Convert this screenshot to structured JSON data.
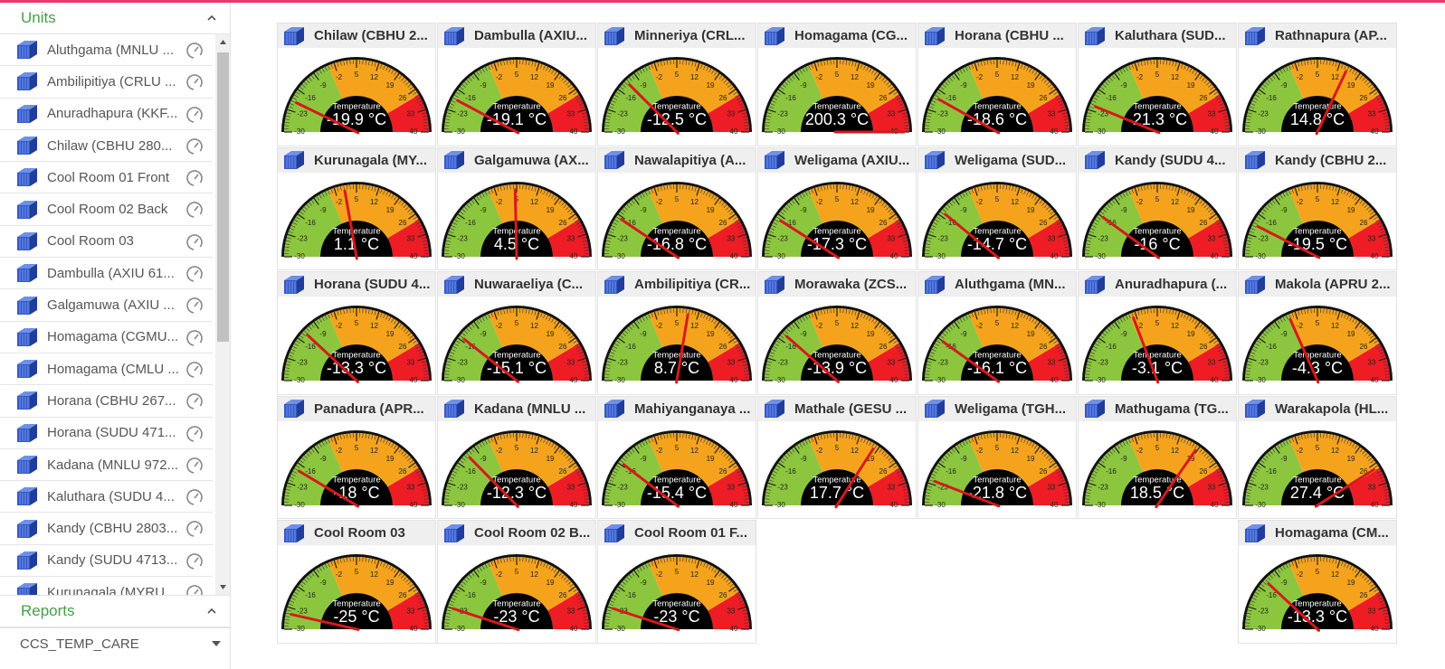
{
  "sidebar": {
    "units_header": "Units",
    "units": [
      "Aluthgama (MNLU ...",
      "Ambilipitiya (CRLU ...",
      "Anuradhapura (KKF...",
      "Chilaw (CBHU 280...",
      "Cool Room 01 Front",
      "Cool Room 02 Back",
      "Cool Room 03",
      "Dambulla (AXIU 61...",
      "Galgamuwa (AXIU ...",
      "Homagama (CGMU...",
      "Homagama (CMLU ...",
      "Horana (CBHU 267...",
      "Horana (SUDU 471...",
      "Kadana (MNLU 972...",
      "Kaluthara (SUDU 4...",
      "Kandy (CBHU 2803...",
      "Kandy (SUDU 4713...",
      "Kurunagala (MYRU..."
    ],
    "reports_header": "Reports",
    "report_select": "CCS_TEMP_CARE"
  },
  "gauges": {
    "label": "Temperature",
    "range": [
      -30,
      40
    ],
    "ticks": [
      -30,
      -23,
      -16,
      -9,
      -2,
      5,
      12,
      19,
      26,
      33,
      40
    ],
    "bands": [
      {
        "from": -30,
        "to": -4,
        "color": "#8cc63f"
      },
      {
        "from": -4,
        "to": 28,
        "color": "#f5a31d"
      },
      {
        "from": 28,
        "to": 40,
        "color": "#ee1c25"
      }
    ],
    "needle_color": "#d7191c",
    "items": [
      {
        "title": "Chilaw (CBHU 2...",
        "value": -19.9,
        "value_label": "-19.9 °C"
      },
      {
        "title": "Dambulla (AXIU...",
        "value": -19.1,
        "value_label": "-19.1 °C"
      },
      {
        "title": "Minneriya (CRL...",
        "value": -12.5,
        "value_label": "-12.5 °C"
      },
      {
        "title": "Homagama (CG...",
        "value": 200.3,
        "value_label": "200.3 °C"
      },
      {
        "title": "Horana (CBHU ...",
        "value": -18.6,
        "value_label": "-18.6 °C"
      },
      {
        "title": "Kaluthara (SUD...",
        "value": -21.3,
        "value_label": "-21.3 °C"
      },
      {
        "title": "Rathnapura (AP...",
        "value": 14.8,
        "value_label": "14.8 °C"
      },
      {
        "title": "Kurunagala (MY...",
        "value": 1.1,
        "value_label": "1.1 °C"
      },
      {
        "title": "Galgamuwa (AX...",
        "value": 4.5,
        "value_label": "4.5 °C"
      },
      {
        "title": "Nawalapitiya (A...",
        "value": -16.8,
        "value_label": "-16.8 °C"
      },
      {
        "title": "Weligama (AXIU...",
        "value": -17.3,
        "value_label": "-17.3 °C"
      },
      {
        "title": "Weligama (SUD...",
        "value": -14.7,
        "value_label": "-14.7 °C"
      },
      {
        "title": "Kandy (SUDU 4...",
        "value": -16,
        "value_label": "-16 °C"
      },
      {
        "title": "Kandy (CBHU 2...",
        "value": -19.5,
        "value_label": "-19.5 °C"
      },
      {
        "title": "Horana (SUDU 4...",
        "value": -13.3,
        "value_label": "-13.3 °C"
      },
      {
        "title": "Nuwaraeliya (C...",
        "value": -15.1,
        "value_label": "-15.1 °C"
      },
      {
        "title": "Ambilipitiya (CR...",
        "value": 8.7,
        "value_label": "8.7 °C"
      },
      {
        "title": "Morawaka (ZCS...",
        "value": -13.9,
        "value_label": "-13.9 °C"
      },
      {
        "title": "Aluthgama (MN...",
        "value": -16.1,
        "value_label": "-16.1 °C"
      },
      {
        "title": "Anuradhapura (...",
        "value": -3.1,
        "value_label": "-3.1 °C"
      },
      {
        "title": "Makola (APRU 2...",
        "value": -4.3,
        "value_label": "-4.3 °C"
      },
      {
        "title": "Panadura (APR...",
        "value": -18,
        "value_label": "-18 °C"
      },
      {
        "title": "Kadana (MNLU ...",
        "value": -12.3,
        "value_label": "-12.3 °C"
      },
      {
        "title": "Mahiyanganaya ...",
        "value": -15.4,
        "value_label": "-15.4 °C"
      },
      {
        "title": "Mathale (GESU ...",
        "value": 17.7,
        "value_label": "17.7 °C"
      },
      {
        "title": "Weligama (TGH...",
        "value": -21.8,
        "value_label": "-21.8 °C"
      },
      {
        "title": "Mathugama (TG...",
        "value": 18.5,
        "value_label": "18.5 °C"
      },
      {
        "title": "Warakapola (HL...",
        "value": 27.4,
        "value_label": "27.4 °C"
      },
      {
        "title": "Cool Room 03",
        "value": -25,
        "value_label": "-25 °C"
      },
      {
        "title": "Cool Room 02 B...",
        "value": -23,
        "value_label": "-23 °C"
      },
      {
        "title": "Cool Room 01 F...",
        "value": -23,
        "value_label": "-23 °C"
      },
      {
        "title": "Homagama (CM...",
        "value": -13.3,
        "value_label": "-13.3 °C"
      }
    ]
  }
}
